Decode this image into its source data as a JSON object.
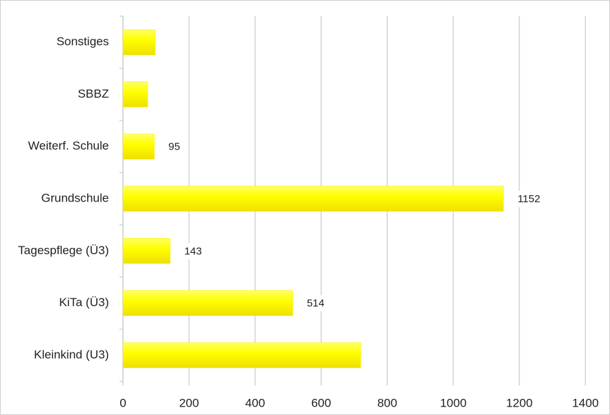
{
  "chart_data": {
    "type": "bar",
    "orientation": "horizontal",
    "categories": [
      "Sonstiges",
      "SBBZ",
      "Weiterf. Schule",
      "Grundschule",
      "Tagespflege (Ü3)",
      "KiTa (Ü3)",
      "Kleinkind (U3)"
    ],
    "values": [
      98,
      75,
      95,
      1152,
      143,
      514,
      720
    ],
    "value_labels": [
      null,
      null,
      "95",
      "1152",
      "143",
      "514",
      null
    ],
    "color": "#f7ef00",
    "xlim": [
      0,
      1400
    ],
    "xticks": [
      0,
      200,
      400,
      600,
      800,
      1000,
      1200,
      1400
    ],
    "grid": true
  }
}
